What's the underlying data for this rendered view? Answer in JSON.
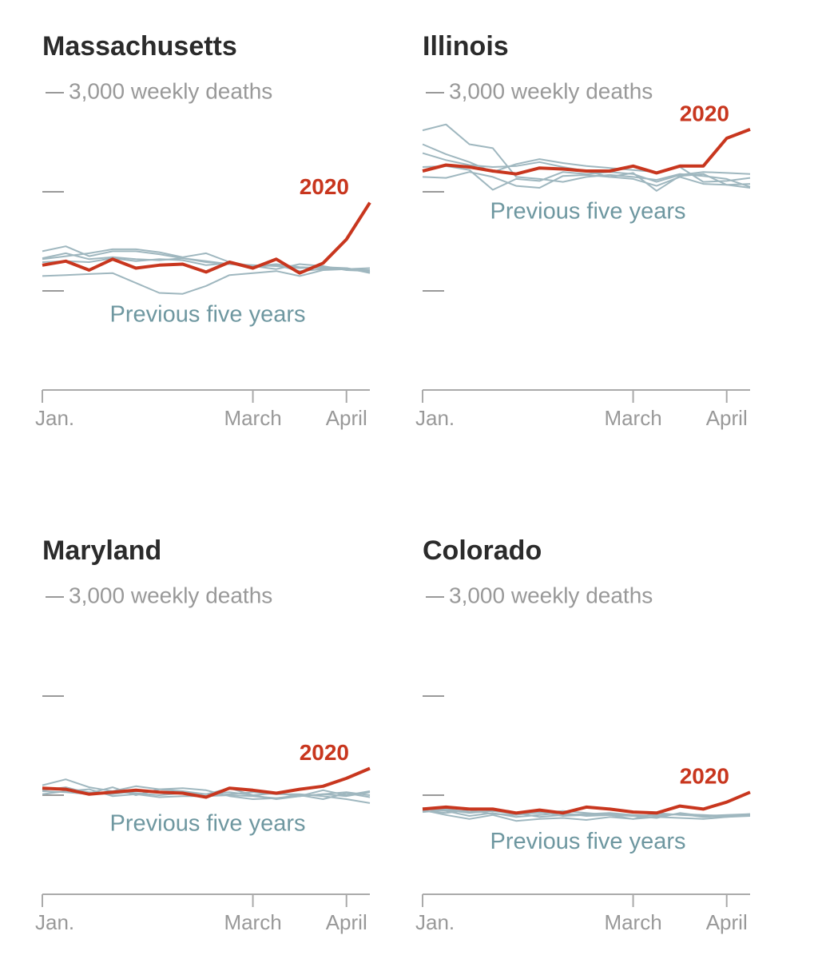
{
  "chart_data": [
    {
      "type": "line",
      "title": "Massachusetts",
      "x": [
        0,
        1,
        2,
        3,
        4,
        5,
        6,
        7,
        8,
        9,
        10,
        11,
        12,
        13,
        14
      ],
      "xlim": [
        0,
        14
      ],
      "xticks": [
        {
          "value": 0,
          "label": "Jan."
        },
        {
          "value": 9,
          "label": "March"
        },
        {
          "value": 13,
          "label": "April"
        }
      ],
      "ylim": [
        0,
        3000
      ],
      "yticks": [
        {
          "value": 3000,
          "label": "3,000 weekly deaths"
        },
        {
          "value": 2000,
          "label": null
        },
        {
          "value": 1000,
          "label": null
        }
      ],
      "series": [
        {
          "name": "2020",
          "color": "#c8361e",
          "values": [
            1260,
            1300,
            1210,
            1320,
            1230,
            1260,
            1270,
            1190,
            1290,
            1230,
            1320,
            1180,
            1280,
            1520,
            1890
          ]
        }
      ],
      "previous_years": {
        "name": "Previous five years",
        "color": "#9fb7bf",
        "series": [
          [
            1400,
            1450,
            1350,
            1400,
            1400,
            1370,
            1330,
            1300,
            1270,
            1260,
            1250,
            1230,
            1240,
            1230,
            1190
          ],
          [
            1320,
            1350,
            1380,
            1420,
            1420,
            1390,
            1340,
            1380,
            1290,
            1250,
            1270,
            1240,
            1230,
            1220,
            1210
          ],
          [
            1290,
            1300,
            1290,
            1330,
            1300,
            1320,
            1310,
            1260,
            1280,
            1240,
            1260,
            1200,
            1220,
            1230,
            1180
          ],
          [
            1150,
            1160,
            1170,
            1180,
            1080,
            980,
            970,
            1050,
            1160,
            1180,
            1200,
            1150,
            1210,
            1220,
            1230
          ],
          [
            1330,
            1380,
            1320,
            1340,
            1320,
            1310,
            1330,
            1290,
            1270,
            1250,
            1220,
            1270,
            1250,
            1210,
            1200
          ]
        ]
      }
    },
    {
      "type": "line",
      "title": "Illinois",
      "x": [
        0,
        1,
        2,
        3,
        4,
        5,
        6,
        7,
        8,
        9,
        10,
        11,
        12,
        13,
        14
      ],
      "xlim": [
        0,
        14
      ],
      "xticks": [
        {
          "value": 0,
          "label": "Jan."
        },
        {
          "value": 9,
          "label": "March"
        },
        {
          "value": 13,
          "label": "April"
        }
      ],
      "ylim": [
        0,
        3000
      ],
      "yticks": [
        {
          "value": 3000,
          "label": "3,000 weekly deaths"
        },
        {
          "value": 2000,
          "label": null
        },
        {
          "value": 1000,
          "label": null
        }
      ],
      "series": [
        {
          "name": "2020",
          "color": "#c8361e",
          "values": [
            2210,
            2270,
            2250,
            2210,
            2180,
            2240,
            2230,
            2210,
            2210,
            2260,
            2190,
            2260,
            2260,
            2540,
            2630
          ]
        }
      ],
      "previous_years": {
        "name": "Previous five years",
        "color": "#9fb7bf",
        "series": [
          [
            2620,
            2680,
            2480,
            2440,
            2150,
            2130,
            2100,
            2150,
            2170,
            2150,
            2120,
            2180,
            2160,
            2130,
            2050
          ],
          [
            2480,
            2380,
            2300,
            2200,
            2280,
            2330,
            2290,
            2260,
            2240,
            2220,
            2200,
            2250,
            2100,
            2110,
            2140
          ],
          [
            2250,
            2260,
            2220,
            2020,
            2130,
            2110,
            2200,
            2180,
            2200,
            2180,
            2100,
            2170,
            2200,
            2190,
            2180
          ],
          [
            2150,
            2140,
            2200,
            2150,
            2060,
            2040,
            2160,
            2170,
            2150,
            2130,
            2060,
            2150,
            2080,
            2070,
            2080
          ],
          [
            2390,
            2320,
            2270,
            2250,
            2260,
            2300,
            2250,
            2210,
            2150,
            2190,
            2010,
            2160,
            2180,
            2070,
            2040
          ]
        ]
      }
    },
    {
      "type": "line",
      "title": "Maryland",
      "x": [
        0,
        1,
        2,
        3,
        4,
        5,
        6,
        7,
        8,
        9,
        10,
        11,
        12,
        13,
        14
      ],
      "xlim": [
        0,
        14
      ],
      "xticks": [
        {
          "value": 0,
          "label": "Jan."
        },
        {
          "value": 9,
          "label": "March"
        },
        {
          "value": 13,
          "label": "April"
        }
      ],
      "ylim": [
        0,
        3000
      ],
      "yticks": [
        {
          "value": 3000,
          "label": "3,000 weekly deaths"
        },
        {
          "value": 2000,
          "label": null
        },
        {
          "value": 1000,
          "label": null
        }
      ],
      "series": [
        {
          "name": "2020",
          "color": "#c8361e",
          "values": [
            1070,
            1060,
            1010,
            1030,
            1050,
            1030,
            1020,
            980,
            1070,
            1050,
            1020,
            1060,
            1090,
            1170,
            1270
          ]
        }
      ],
      "previous_years": {
        "name": "Previous five years",
        "color": "#9fb7bf",
        "series": [
          [
            1100,
            1160,
            1080,
            1040,
            1090,
            1060,
            1040,
            1010,
            1030,
            1000,
            1020,
            990,
            1050,
            1000,
            1040
          ],
          [
            1050,
            1080,
            1020,
            1080,
            1000,
            1060,
            1070,
            1050,
            990,
            960,
            970,
            990,
            1010,
            1030,
            1000
          ],
          [
            1040,
            1030,
            1010,
            1030,
            1020,
            1000,
            1020,
            990,
            1010,
            1030,
            1010,
            1010,
            990,
            960,
            920
          ],
          [
            1060,
            1070,
            1030,
            1010,
            1040,
            1030,
            1020,
            1010,
            1070,
            1000,
            960,
            990,
            1010,
            990,
            1030
          ],
          [
            1010,
            1040,
            1060,
            990,
            1010,
            980,
            990,
            990,
            1000,
            990,
            970,
            1000,
            960,
            1020,
            980
          ]
        ]
      }
    },
    {
      "type": "line",
      "title": "Colorado",
      "x": [
        0,
        1,
        2,
        3,
        4,
        5,
        6,
        7,
        8,
        9,
        10,
        11,
        12,
        13,
        14
      ],
      "xlim": [
        0,
        14
      ],
      "xticks": [
        {
          "value": 0,
          "label": "Jan."
        },
        {
          "value": 9,
          "label": "March"
        },
        {
          "value": 13,
          "label": "April"
        }
      ],
      "ylim": [
        0,
        3000
      ],
      "yticks": [
        {
          "value": 3000,
          "label": "3,000 weekly deaths"
        },
        {
          "value": 2000,
          "label": null
        },
        {
          "value": 1000,
          "label": null
        }
      ],
      "series": [
        {
          "name": "2020",
          "color": "#c8361e",
          "values": [
            860,
            880,
            860,
            860,
            820,
            850,
            820,
            880,
            860,
            830,
            820,
            890,
            860,
            930,
            1030
          ]
        }
      ],
      "previous_years": {
        "name": "Previous five years",
        "color": "#9fb7bf",
        "series": [
          [
            860,
            840,
            790,
            820,
            780,
            800,
            820,
            790,
            800,
            760,
            820,
            800,
            790,
            780,
            800
          ],
          [
            830,
            850,
            820,
            840,
            820,
            780,
            800,
            810,
            820,
            800,
            790,
            810,
            800,
            790,
            810
          ],
          [
            840,
            820,
            850,
            810,
            800,
            830,
            790,
            800,
            810,
            790,
            770,
            820,
            790,
            800,
            810
          ],
          [
            850,
            800,
            760,
            800,
            740,
            760,
            770,
            750,
            780,
            760,
            780,
            770,
            760,
            780,
            790
          ],
          [
            870,
            860,
            830,
            840,
            810,
            820,
            840,
            820,
            800,
            790,
            800,
            810,
            780,
            790,
            790
          ]
        ]
      }
    }
  ]
}
